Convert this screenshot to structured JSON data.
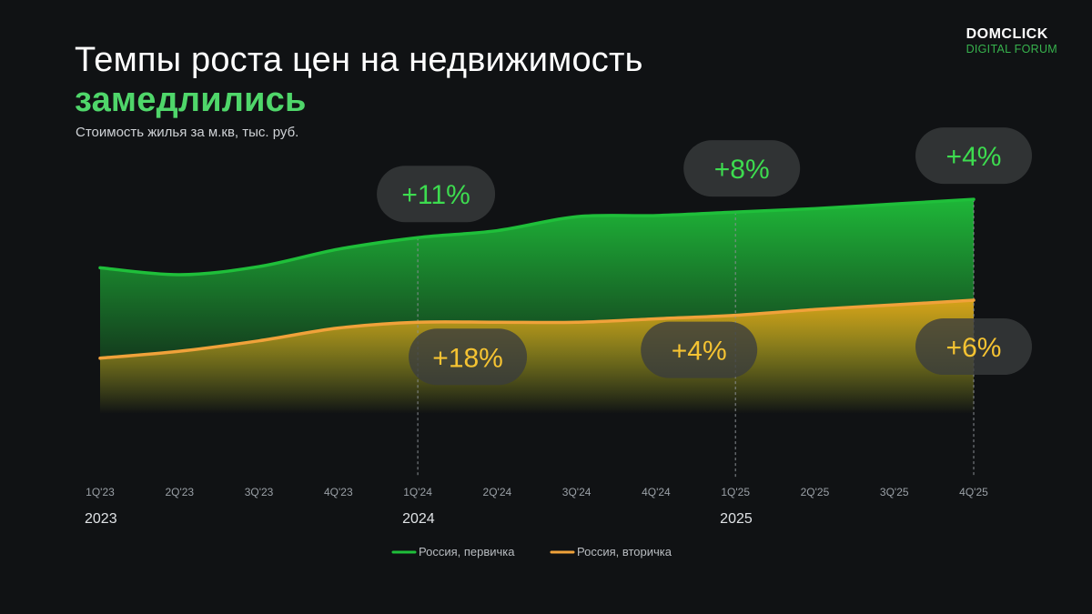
{
  "title": {
    "line1": "Темпы роста цен на недвижимость",
    "line2": "замедлились"
  },
  "subtitle": "Стоимость жилья за м.кв, тыс. руб.",
  "logo": {
    "line1": "DOMCLICK",
    "line2": "DIGITAL FORUM"
  },
  "colors": {
    "primary": "#1fbf3a",
    "secondary": "#f0a23a",
    "primary_label": "#3ddc4f",
    "secondary_label": "#f5c332",
    "background": "#101214"
  },
  "chart_data": {
    "type": "area",
    "title": "Стоимость жилья за м.кв, тыс. руб.",
    "categories": [
      "1Q'23",
      "2Q'23",
      "3Q'23",
      "4Q'23",
      "1Q'24",
      "2Q'24",
      "3Q'24",
      "4Q'24",
      "1Q'25",
      "2Q'25",
      "3Q'25",
      "4Q'25"
    ],
    "years": [
      {
        "label": "2023",
        "category": "1Q'23"
      },
      {
        "label": "2024",
        "category": "1Q'24"
      },
      {
        "label": "2025",
        "category": "1Q'25"
      }
    ],
    "ylim": [
      0,
      100
    ],
    "series": [
      {
        "name": "Россия, первичка",
        "color_key": "primary",
        "values": [
          63,
          60,
          63.5,
          71,
          76,
          79,
          85,
          85.5,
          87,
          88.5,
          90.5,
          92.5
        ]
      },
      {
        "name": "Россия, вторичка",
        "color_key": "secondary",
        "values": [
          24,
          27,
          31.5,
          37,
          39.5,
          39.5,
          39.5,
          41,
          42.5,
          45,
          47,
          49
        ]
      }
    ],
    "annotations": [
      {
        "text": "+11%",
        "series": 0,
        "category": "1Q'24"
      },
      {
        "text": "+8%",
        "series": 0,
        "category": "1Q'25"
      },
      {
        "text": "+4%",
        "series": 0,
        "category": "4Q'25"
      },
      {
        "text": "+18%",
        "series": 1,
        "category": "1Q'24"
      },
      {
        "text": "+4%",
        "series": 1,
        "category": "1Q'25"
      },
      {
        "text": "+6%",
        "series": 1,
        "category": "4Q'25"
      }
    ],
    "markers": [
      "1Q'24",
      "1Q'25",
      "4Q'25"
    ],
    "legend": {
      "position": "bottom-center"
    },
    "grid": false
  }
}
